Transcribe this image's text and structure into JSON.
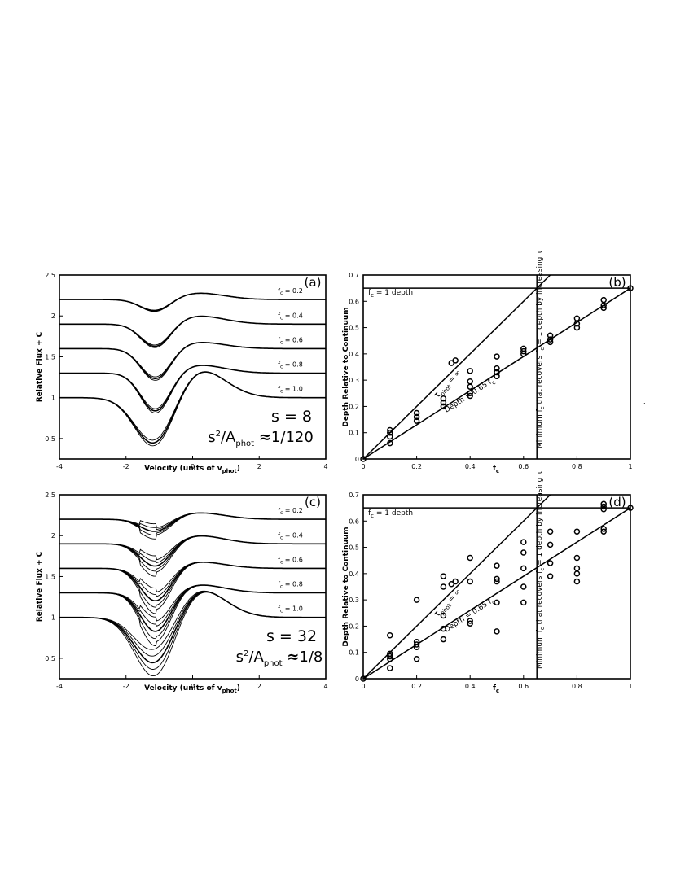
{
  "chart_data": [
    {
      "panel": "(a)",
      "type": "line",
      "xlabel": "Velocity (units of v",
      "xlabel_sub": "phot",
      "xlabel_end": ")",
      "ylabel": "Relative Flux + C",
      "xlim": [
        -4,
        4
      ],
      "ylim": [
        0.25,
        2.5
      ],
      "xticks": [
        "-4",
        "-2",
        "0",
        "2",
        "4"
      ],
      "yticks": [
        "0.5",
        "1",
        "1.5",
        "2",
        "2.5"
      ],
      "ytick_values": [
        0.5,
        1,
        1.5,
        2,
        2.5
      ],
      "s_text": "s = 8",
      "ratio_prefix": "s",
      "ratio_sup": "2",
      "ratio_mid": "/A",
      "ratio_sub": "phot",
      "ratio_approx": "≈",
      "ratio_value": "1/120",
      "spread": 0.03,
      "series": [
        {
          "label_main": "f",
          "label_sub": "c",
          "label_rest": " = 0.2",
          "offset": 2.2,
          "depth": 0.16,
          "emission": 0.08
        },
        {
          "label_main": "f",
          "label_sub": "c",
          "label_rest": " = 0.4",
          "offset": 1.9,
          "depth": 0.3,
          "emission": 0.1
        },
        {
          "label_main": "f",
          "label_sub": "c",
          "label_rest": " = 0.6",
          "offset": 1.6,
          "depth": 0.39,
          "emission": 0.08
        },
        {
          "label_main": "f",
          "label_sub": "c",
          "label_rest": " = 0.8",
          "offset": 1.3,
          "depth": 0.49,
          "emission": 0.1
        },
        {
          "label_main": "f",
          "label_sub": "c",
          "label_rest": " = 1.0",
          "offset": 1.0,
          "depth": 0.65,
          "emission": 0.36
        }
      ]
    },
    {
      "panel": "(b)",
      "type": "scatter",
      "xlabel": "f",
      "xlabel_sub": "c",
      "ylabel": "Depth Relative to Continuum",
      "xlim": [
        0,
        1
      ],
      "ylim": [
        0,
        0.7
      ],
      "xticks": [
        "0",
        "0.2",
        "0.4",
        "0.6",
        "0.8",
        "1"
      ],
      "xtick_values": [
        0,
        0.2,
        0.4,
        0.6,
        0.8,
        1
      ],
      "yticks": [
        "0",
        "0.1",
        "0.2",
        "0.3",
        "0.4",
        "0.5",
        "0.6",
        "0.7"
      ],
      "ytick_values": [
        0,
        0.1,
        0.2,
        0.3,
        0.4,
        0.5,
        0.6,
        0.7
      ],
      "hline": 0.65,
      "hline_label_main": "f",
      "hline_label_sub": "c",
      "hline_label_rest": " = 1 depth",
      "vline": 0.65,
      "vline_label_a": "Minimum f",
      "vline_label_sub": "c",
      "vline_label_b": " that recovers f",
      "vline_label_sub2": "c",
      "vline_label_c": " = 1 depth by increasing τ",
      "line1_label_main": "τ",
      "line1_label_sub": "phot",
      "line1_label_rest": " = ∞",
      "line2_label": "Depth = 0.65 f",
      "line2_label_sub": "c",
      "points": [
        [
          0.1,
          0.11
        ],
        [
          0.1,
          0.1
        ],
        [
          0.1,
          0.085
        ],
        [
          0.1,
          0.06
        ],
        [
          0.2,
          0.175
        ],
        [
          0.2,
          0.16
        ],
        [
          0.2,
          0.145
        ],
        [
          0.3,
          0.23
        ],
        [
          0.3,
          0.215
        ],
        [
          0.3,
          0.2
        ],
        [
          0.33,
          0.365
        ],
        [
          0.345,
          0.375
        ],
        [
          0.4,
          0.335
        ],
        [
          0.4,
          0.295
        ],
        [
          0.4,
          0.275
        ],
        [
          0.4,
          0.25
        ],
        [
          0.4,
          0.24
        ],
        [
          0.5,
          0.39
        ],
        [
          0.5,
          0.345
        ],
        [
          0.5,
          0.33
        ],
        [
          0.5,
          0.315
        ],
        [
          0.6,
          0.42
        ],
        [
          0.6,
          0.41
        ],
        [
          0.6,
          0.4
        ],
        [
          0.7,
          0.47
        ],
        [
          0.7,
          0.455
        ],
        [
          0.7,
          0.445
        ],
        [
          0.8,
          0.535
        ],
        [
          0.8,
          0.515
        ],
        [
          0.8,
          0.5
        ],
        [
          0.9,
          0.605
        ],
        [
          0.9,
          0.585
        ],
        [
          0.9,
          0.575
        ],
        [
          0,
          0
        ],
        [
          1,
          0.65
        ]
      ]
    },
    {
      "panel": "(c)",
      "type": "line",
      "xlabel": "Velocity (units of v",
      "xlabel_sub": "phot",
      "xlabel_end": ")",
      "ylabel": "Relative Flux + C",
      "xlim": [
        -4,
        4
      ],
      "ylim": [
        0.25,
        2.5
      ],
      "xticks": [
        "-4",
        "-2",
        "0",
        "2",
        "4"
      ],
      "yticks": [
        "0.5",
        "1",
        "1.5",
        "2",
        "2.5"
      ],
      "ytick_values": [
        0.5,
        1,
        1.5,
        2,
        2.5
      ],
      "s_text": "s = 32",
      "ratio_prefix": "s",
      "ratio_sup": "2",
      "ratio_mid": "/A",
      "ratio_sub": "phot",
      "ratio_approx": "≈",
      "ratio_value": "1/8",
      "spread": 0.14,
      "series": [
        {
          "label_main": "f",
          "label_sub": "c",
          "label_rest": " = 0.2",
          "offset": 2.2,
          "depth": 0.17,
          "emission": 0.08
        },
        {
          "label_main": "f",
          "label_sub": "c",
          "label_rest": " = 0.4",
          "offset": 1.9,
          "depth": 0.3,
          "emission": 0.1
        },
        {
          "label_main": "f",
          "label_sub": "c",
          "label_rest": " = 0.6",
          "offset": 1.6,
          "depth": 0.42,
          "emission": 0.08
        },
        {
          "label_main": "f",
          "label_sub": "c",
          "label_rest": " = 0.8",
          "offset": 1.3,
          "depth": 0.5,
          "emission": 0.1
        },
        {
          "label_main": "f",
          "label_sub": "c",
          "label_rest": " = 1.0",
          "offset": 1.0,
          "depth": 0.65,
          "emission": 0.36
        }
      ]
    },
    {
      "panel": "(d)",
      "type": "scatter",
      "xlabel": "f",
      "xlabel_sub": "c",
      "ylabel": "Depth Relative to Continuum",
      "xlim": [
        0,
        1
      ],
      "ylim": [
        0,
        0.7
      ],
      "xticks": [
        "0",
        "0.2",
        "0.4",
        "0.6",
        "0.8",
        "1"
      ],
      "xtick_values": [
        0,
        0.2,
        0.4,
        0.6,
        0.8,
        1
      ],
      "yticks": [
        "0",
        "0.1",
        "0.2",
        "0.3",
        "0.4",
        "0.5",
        "0.6",
        "0.7"
      ],
      "ytick_values": [
        0,
        0.1,
        0.2,
        0.3,
        0.4,
        0.5,
        0.6,
        0.7
      ],
      "hline": 0.65,
      "hline_label_main": "f",
      "hline_label_sub": "c",
      "hline_label_rest": " = 1 depth",
      "vline": 0.65,
      "vline_label_a": "Minimum f",
      "vline_label_sub": "c",
      "vline_label_b": " that recovers f",
      "vline_label_sub2": "c",
      "vline_label_c": " = 1 depth by increasing τ",
      "line1_label_main": "τ",
      "line1_label_sub": "phot",
      "line1_label_rest": " = ∞",
      "line2_label": "Depth = 0.65 f",
      "line2_label_sub": "c",
      "points": [
        [
          0.1,
          0.165
        ],
        [
          0.1,
          0.095
        ],
        [
          0.1,
          0.085
        ],
        [
          0.1,
          0.075
        ],
        [
          0.1,
          0.04
        ],
        [
          0.2,
          0.3
        ],
        [
          0.2,
          0.14
        ],
        [
          0.2,
          0.13
        ],
        [
          0.2,
          0.12
        ],
        [
          0.2,
          0.075
        ],
        [
          0.3,
          0.39
        ],
        [
          0.3,
          0.35
        ],
        [
          0.3,
          0.24
        ],
        [
          0.3,
          0.19
        ],
        [
          0.3,
          0.15
        ],
        [
          0.33,
          0.36
        ],
        [
          0.345,
          0.37
        ],
        [
          0.4,
          0.46
        ],
        [
          0.4,
          0.37
        ],
        [
          0.4,
          0.22
        ],
        [
          0.4,
          0.21
        ],
        [
          0.5,
          0.43
        ],
        [
          0.5,
          0.38
        ],
        [
          0.5,
          0.37
        ],
        [
          0.5,
          0.29
        ],
        [
          0.5,
          0.18
        ],
        [
          0.6,
          0.52
        ],
        [
          0.6,
          0.48
        ],
        [
          0.6,
          0.42
        ],
        [
          0.6,
          0.35
        ],
        [
          0.6,
          0.29
        ],
        [
          0.7,
          0.56
        ],
        [
          0.7,
          0.51
        ],
        [
          0.7,
          0.44
        ],
        [
          0.7,
          0.39
        ],
        [
          0.8,
          0.56
        ],
        [
          0.8,
          0.46
        ],
        [
          0.8,
          0.42
        ],
        [
          0.8,
          0.4
        ],
        [
          0.8,
          0.37
        ],
        [
          0.9,
          0.665
        ],
        [
          0.9,
          0.655
        ],
        [
          0.9,
          0.645
        ],
        [
          0.9,
          0.57
        ],
        [
          0.9,
          0.56
        ],
        [
          0,
          0
        ],
        [
          1,
          0.65
        ]
      ]
    }
  ]
}
